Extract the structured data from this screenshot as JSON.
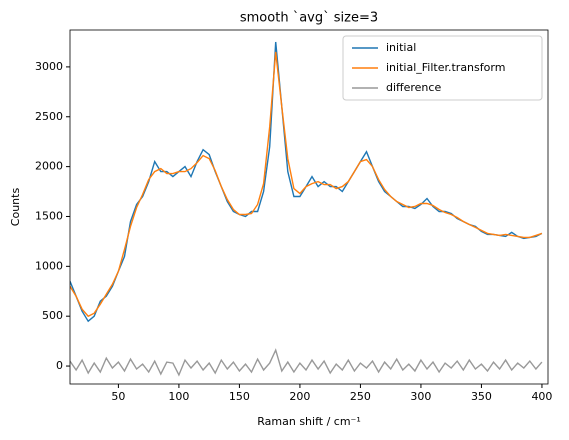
{
  "chart_data": {
    "type": "line",
    "title": "smooth `avg` size=3",
    "xlabel": "Raman shift / cm⁻¹",
    "ylabel": "Counts",
    "x": [
      10,
      15,
      20,
      25,
      30,
      35,
      40,
      45,
      50,
      55,
      60,
      65,
      70,
      75,
      80,
      85,
      90,
      95,
      100,
      105,
      110,
      115,
      120,
      125,
      130,
      135,
      140,
      145,
      150,
      155,
      160,
      165,
      170,
      175,
      180,
      185,
      190,
      195,
      200,
      205,
      210,
      215,
      220,
      225,
      230,
      235,
      240,
      245,
      250,
      255,
      260,
      265,
      270,
      275,
      280,
      285,
      290,
      295,
      300,
      305,
      310,
      315,
      320,
      325,
      330,
      335,
      340,
      345,
      350,
      355,
      360,
      365,
      370,
      375,
      380,
      385,
      390,
      395,
      400
    ],
    "series": [
      {
        "name": "initial",
        "color": "#1f77b4",
        "values": [
          850,
          700,
          550,
          450,
          500,
          650,
          700,
          800,
          950,
          1100,
          1450,
          1620,
          1700,
          1850,
          2050,
          1950,
          1950,
          1900,
          1950,
          2000,
          1900,
          2050,
          2170,
          2120,
          1950,
          1800,
          1650,
          1550,
          1520,
          1500,
          1550,
          1550,
          1750,
          2200,
          3250,
          2600,
          1950,
          1700,
          1700,
          1800,
          1900,
          1800,
          1850,
          1800,
          1800,
          1750,
          1850,
          1950,
          2050,
          2150,
          2000,
          1850,
          1750,
          1700,
          1650,
          1600,
          1600,
          1580,
          1620,
          1680,
          1600,
          1550,
          1550,
          1530,
          1480,
          1450,
          1420,
          1400,
          1350,
          1320,
          1320,
          1310,
          1300,
          1340,
          1300,
          1280,
          1290,
          1300,
          1330
        ]
      },
      {
        "name": "initial_Filter.transform",
        "color": "#ff7f0e",
        "values": [
          800,
          700,
          570,
          500,
          530,
          620,
          720,
          820,
          950,
          1170,
          1400,
          1590,
          1720,
          1870,
          1950,
          1980,
          1930,
          1930,
          1950,
          1950,
          1980,
          2040,
          2110,
          2080,
          1960,
          1800,
          1670,
          1570,
          1520,
          1520,
          1530,
          1620,
          1830,
          2400,
          3150,
          2600,
          2080,
          1780,
          1730,
          1800,
          1830,
          1850,
          1820,
          1820,
          1780,
          1800,
          1850,
          1950,
          2050,
          2070,
          2000,
          1870,
          1770,
          1700,
          1650,
          1620,
          1590,
          1600,
          1630,
          1630,
          1610,
          1570,
          1540,
          1520,
          1490,
          1450,
          1420,
          1390,
          1360,
          1330,
          1320,
          1310,
          1320,
          1310,
          1300,
          1290,
          1290,
          1310,
          1330
        ]
      },
      {
        "name": "difference",
        "color": "#999999",
        "values": [
          50,
          -40,
          60,
          -70,
          30,
          -60,
          80,
          -20,
          40,
          -50,
          70,
          -30,
          20,
          -60,
          50,
          -80,
          40,
          30,
          -90,
          60,
          -20,
          50,
          -40,
          30,
          -70,
          60,
          -30,
          40,
          -50,
          20,
          -60,
          70,
          -40,
          30,
          160,
          -50,
          40,
          -60,
          30,
          -40,
          60,
          -30,
          50,
          -70,
          20,
          -40,
          60,
          -50,
          30,
          -20,
          50,
          -60,
          40,
          -30,
          70,
          -40,
          20,
          -50,
          60,
          -30,
          40,
          -60,
          30,
          -20,
          50,
          -40,
          60,
          -30,
          20,
          -50,
          40,
          -30,
          60,
          -40,
          30,
          -20,
          50,
          -30,
          40
        ]
      }
    ],
    "xlim": [
      10,
      405
    ],
    "ylim": [
      -180,
      3370
    ],
    "xticks": [
      50,
      100,
      150,
      200,
      250,
      300,
      350,
      400
    ],
    "yticks": [
      0,
      500,
      1000,
      1500,
      2000,
      2500,
      3000
    ],
    "legend": "upper right"
  }
}
